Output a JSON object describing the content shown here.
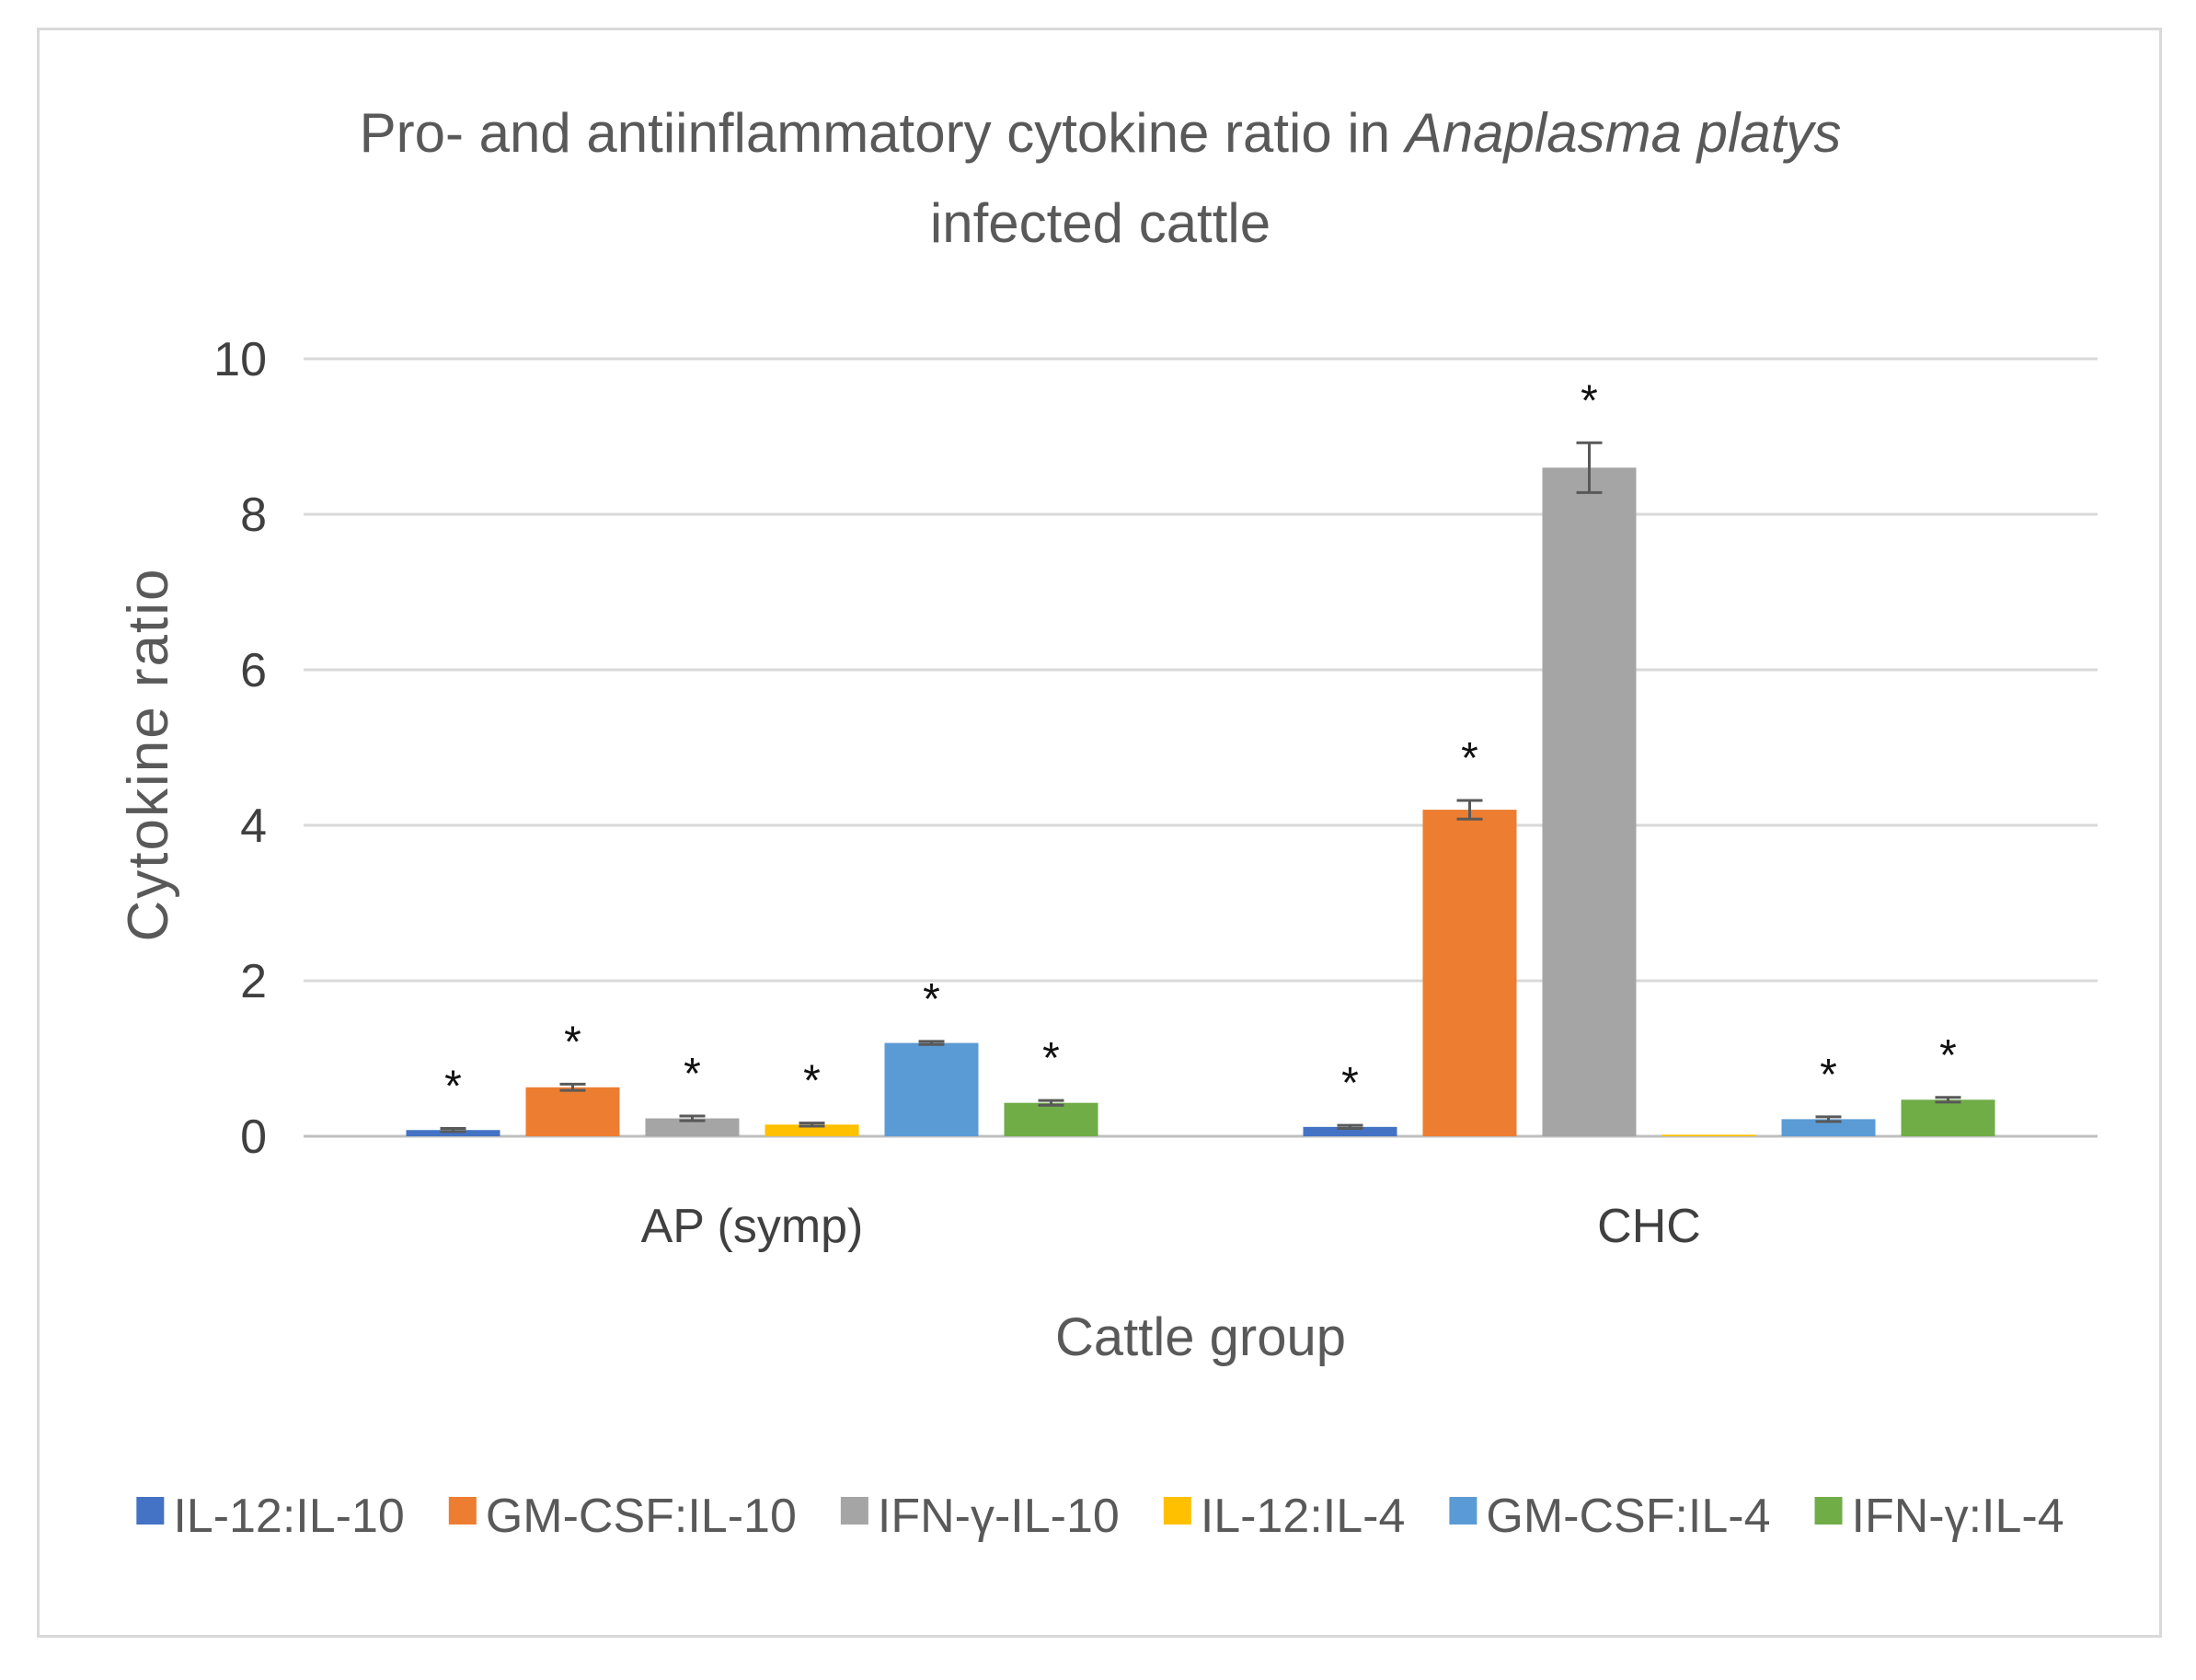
{
  "chart_data": {
    "type": "bar",
    "title_parts": [
      "Pro- and antiinflammatory cytokine ratio in ",
      "Anaplasma platys"
    ],
    "title_line2": "infected cattle",
    "xlabel": "Cattle group",
    "ylabel": "Cytokine ratio",
    "ylim": [
      0,
      10
    ],
    "yticks": [
      "0",
      "2",
      "4",
      "6",
      "8",
      "10"
    ],
    "grid": true,
    "legend_position": "bottom",
    "categories": [
      "AP (symp)",
      "CHC"
    ],
    "significance_marker": "*",
    "series": [
      {
        "name": "IL-12:IL-10",
        "color": "#4472C4",
        "values": [
          0.08,
          0.12
        ],
        "errors": [
          0.02,
          0.02
        ],
        "significant": [
          true,
          true
        ]
      },
      {
        "name": "GM-CSF:IL-10",
        "color": "#ED7D31",
        "values": [
          0.63,
          4.2
        ],
        "errors": [
          0.04,
          0.12
        ],
        "significant": [
          true,
          true
        ]
      },
      {
        "name": "IFN-γ-IL-10",
        "color": "#A5A5A5",
        "values": [
          0.23,
          8.6
        ],
        "errors": [
          0.03,
          0.32
        ],
        "significant": [
          true,
          true
        ]
      },
      {
        "name": "IL-12:IL-4",
        "color": "#FFC000",
        "values": [
          0.15,
          0.02
        ],
        "errors": [
          0.02,
          0.0
        ],
        "significant": [
          true,
          false
        ]
      },
      {
        "name": "GM-CSF:IL-4",
        "color": "#5B9BD5",
        "values": [
          1.2,
          0.22
        ],
        "errors": [
          0.02,
          0.03
        ],
        "significant": [
          true,
          true
        ]
      },
      {
        "name": "IFN-γ:IL-4",
        "color": "#70AD47",
        "values": [
          0.43,
          0.47
        ],
        "errors": [
          0.03,
          0.03
        ],
        "significant": [
          true,
          true
        ]
      }
    ]
  }
}
